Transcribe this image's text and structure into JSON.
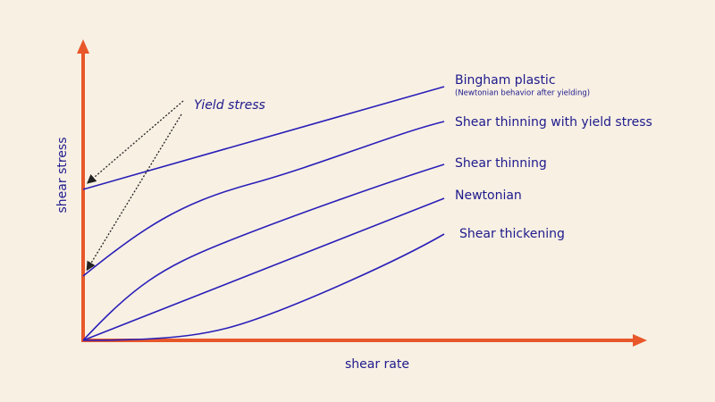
{
  "axes": {
    "x_label": "shear rate",
    "y_label": "shear stress"
  },
  "annotation": "Yield stress",
  "curves": [
    {
      "label": "Bingham plastic",
      "note": "(Newtonian behavior after yielding)"
    },
    {
      "label": "Shear thinning with yield stress"
    },
    {
      "label": "Shear thinning"
    },
    {
      "label": "Newtonian"
    },
    {
      "label": "Shear thickening"
    }
  ]
}
